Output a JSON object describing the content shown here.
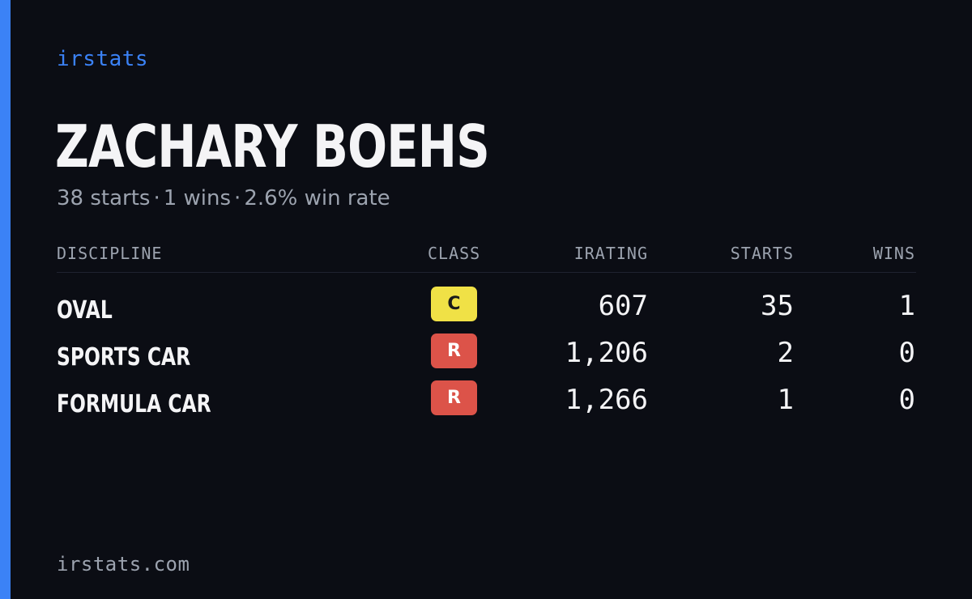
{
  "brand": "irstats",
  "player": {
    "name": "ZACHARY BOEHS"
  },
  "summary": {
    "starts_text": "38 starts",
    "wins_text": "1 wins",
    "win_rate_text": "2.6% win rate",
    "separator": "·"
  },
  "table": {
    "headers": {
      "discipline": "DISCIPLINE",
      "class": "CLASS",
      "irating": "IRATING",
      "starts": "STARTS",
      "wins": "WINS"
    },
    "rows": [
      {
        "discipline": "OVAL",
        "class": "C",
        "class_bg": "#f0e146",
        "class_fg": "#1a1a1a",
        "irating": "607",
        "starts": "35",
        "wins": "1"
      },
      {
        "discipline": "SPORTS CAR",
        "class": "R",
        "class_bg": "#dc5349",
        "class_fg": "#ffffff",
        "irating": "1,206",
        "starts": "2",
        "wins": "0"
      },
      {
        "discipline": "FORMULA CAR",
        "class": "R",
        "class_bg": "#dc5349",
        "class_fg": "#ffffff",
        "irating": "1,266",
        "starts": "1",
        "wins": "0"
      }
    ]
  },
  "footer": "irstats.com",
  "colors": {
    "background": "#0b0d14",
    "accent": "#3b82f6",
    "text_primary": "#f4f4f6",
    "text_muted": "#9ca3af"
  }
}
